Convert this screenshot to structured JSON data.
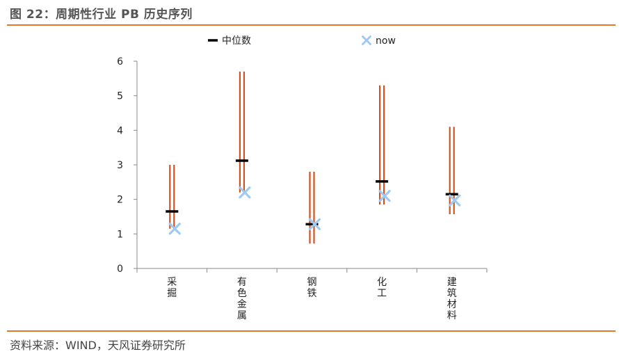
{
  "figure": {
    "title": "图 22：周期性行业 PB 历史序列",
    "source": "资料来源：WIND，天风证券研究所"
  },
  "colors": {
    "accent": "#e07a2e",
    "range": "#d2521e",
    "median": "#000000",
    "now": "#9ec9f0"
  },
  "chart_data": {
    "type": "range",
    "title": "",
    "xlabel": "",
    "ylabel": "",
    "ylim": [
      0,
      6
    ],
    "yticks": [
      0,
      1,
      2,
      3,
      4,
      5,
      6
    ],
    "grid": false,
    "legend": {
      "position": "top",
      "entries": [
        "中位数",
        "now"
      ]
    },
    "categories": [
      "采掘",
      "有色金属",
      "钢铁",
      "化工",
      "建筑材料"
    ],
    "series": [
      {
        "name": "max",
        "values": [
          3.0,
          5.7,
          2.8,
          5.3,
          4.1
        ]
      },
      {
        "name": "min",
        "values": [
          1.15,
          2.2,
          0.72,
          1.85,
          1.57
        ]
      },
      {
        "name": "中位数",
        "values": [
          1.65,
          3.12,
          1.28,
          2.52,
          2.15
        ]
      },
      {
        "name": "now",
        "values": [
          1.15,
          2.2,
          1.28,
          2.1,
          1.97
        ]
      }
    ]
  }
}
